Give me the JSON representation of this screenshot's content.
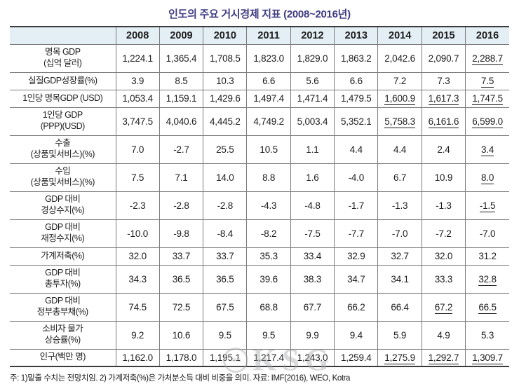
{
  "title": "인도의 주요 거시경제 지표 (2008~2016년)",
  "table": {
    "corner_label": "",
    "year_headers": [
      "2008",
      "2009",
      "2010",
      "2011",
      "2012",
      "2013",
      "2014",
      "2015",
      "2016"
    ],
    "rows": [
      {
        "label_lines": [
          "명목 GDP",
          "(십억 달러)"
        ],
        "values": [
          "1,224.1",
          "1,365.4",
          "1,708.5",
          "1,823.0",
          "1,829.0",
          "1,863.2",
          "2,042.6",
          "2,090.7",
          "2,288.7"
        ],
        "underlined": [
          8
        ]
      },
      {
        "label_lines": [
          "실질GDP성장률(%)"
        ],
        "values": [
          "3.9",
          "8.5",
          "10.3",
          "6.6",
          "5.6",
          "6.6",
          "7.2",
          "7.3",
          "7.5"
        ],
        "underlined": [
          8
        ]
      },
      {
        "label_lines": [
          "1인당 명목GDP (USD)"
        ],
        "values": [
          "1,053.4",
          "1,159.1",
          "1,429.6",
          "1,497.4",
          "1,471.4",
          "1,479.5",
          "1,600.9",
          "1,617.3",
          "1,747.5"
        ],
        "underlined": [
          6,
          7,
          8
        ]
      },
      {
        "label_lines": [
          "1인당 GDP",
          "(PPP)(USD)"
        ],
        "values": [
          "3,747.5",
          "4,040.6",
          "4,445.2",
          "4,749.2",
          "5,003.4",
          "5,352.1",
          "5,758.3",
          "6,161.6",
          "6,599.0"
        ],
        "underlined": [
          6,
          7,
          8
        ]
      },
      {
        "label_lines": [
          "수출",
          "(상품및서비스)(%)"
        ],
        "values": [
          "7.0",
          "-2.7",
          "25.5",
          "10.5",
          "1.1",
          "4.4",
          "4.4",
          "2.4",
          "3.4"
        ],
        "underlined": [
          8
        ]
      },
      {
        "label_lines": [
          "수입",
          "(상품및서비스)(%)"
        ],
        "values": [
          "7.5",
          "7.1",
          "14.0",
          "8.8",
          "1.6",
          "-4.0",
          "6.7",
          "10.9",
          "8.0"
        ],
        "underlined": [
          8
        ]
      },
      {
        "label_lines": [
          "GDP 대비",
          "경상수지(%)"
        ],
        "values": [
          "-2.3",
          "-2.8",
          "-2.8",
          "-4.3",
          "-4.8",
          "-1.7",
          "-1.3",
          "-1.3",
          "-1.5"
        ],
        "underlined": [
          8
        ]
      },
      {
        "label_lines": [
          "GDP 대비",
          "재정수지(%)"
        ],
        "values": [
          "-10.0",
          "-9.8",
          "-8.4",
          "-8.2",
          "-7.5",
          "-7.7",
          "-7.0",
          "-7.2",
          "-7.0"
        ],
        "underlined": []
      },
      {
        "label_lines": [
          "가계저축(%)"
        ],
        "values": [
          "32.0",
          "33.7",
          "33.7",
          "35.3",
          "33.4",
          "32.9",
          "32.7",
          "32.0",
          "31.2"
        ],
        "underlined": []
      },
      {
        "label_lines": [
          "GDP 대비",
          "총투자(%)"
        ],
        "values": [
          "34.3",
          "36.5",
          "36.5",
          "39.6",
          "38.3",
          "34.7",
          "34.1",
          "33.3",
          "32.8"
        ],
        "underlined": [
          8
        ]
      },
      {
        "label_lines": [
          "GDP 대비",
          "정부총부채(%)"
        ],
        "values": [
          "74.5",
          "72.5",
          "67.5",
          "68.8",
          "67.7",
          "66.2",
          "66.4",
          "67.2",
          "66.5"
        ],
        "underlined": [
          7,
          8
        ]
      },
      {
        "label_lines": [
          "소비자 물가",
          "상승률(%)"
        ],
        "values": [
          "9.2",
          "10.6",
          "9.5",
          "9.5",
          "9.9",
          "9.4",
          "5.9",
          "4.9",
          "5.3"
        ],
        "underlined": []
      },
      {
        "label_lines": [
          "인구(백만 명)"
        ],
        "values": [
          "1,162.0",
          "1,178.0",
          "1,195.1",
          "1,217.4",
          "1,243.0",
          "1,259.4",
          "1,275.9",
          "1,292.7",
          "1,309.7"
        ],
        "underlined": [
          6,
          7,
          8
        ]
      }
    ]
  },
  "footnote": "주: 1)밑줄 수치는 전망치임. 2) 가계저축(%)은 가처분소득 대비 비중을 의미. 자료: IMF(2016), WEO, Kotra",
  "watermark": {
    "text": "KSG",
    "badge_text": "KSG"
  },
  "colors": {
    "title_text": "#3f3c82",
    "header_bg": "#e4eef5",
    "border_dark": "#3a3a3a",
    "border_light": "#7c7c7c",
    "cell_text": "#1d1d1d",
    "watermark_gray": "#a9adb1"
  }
}
